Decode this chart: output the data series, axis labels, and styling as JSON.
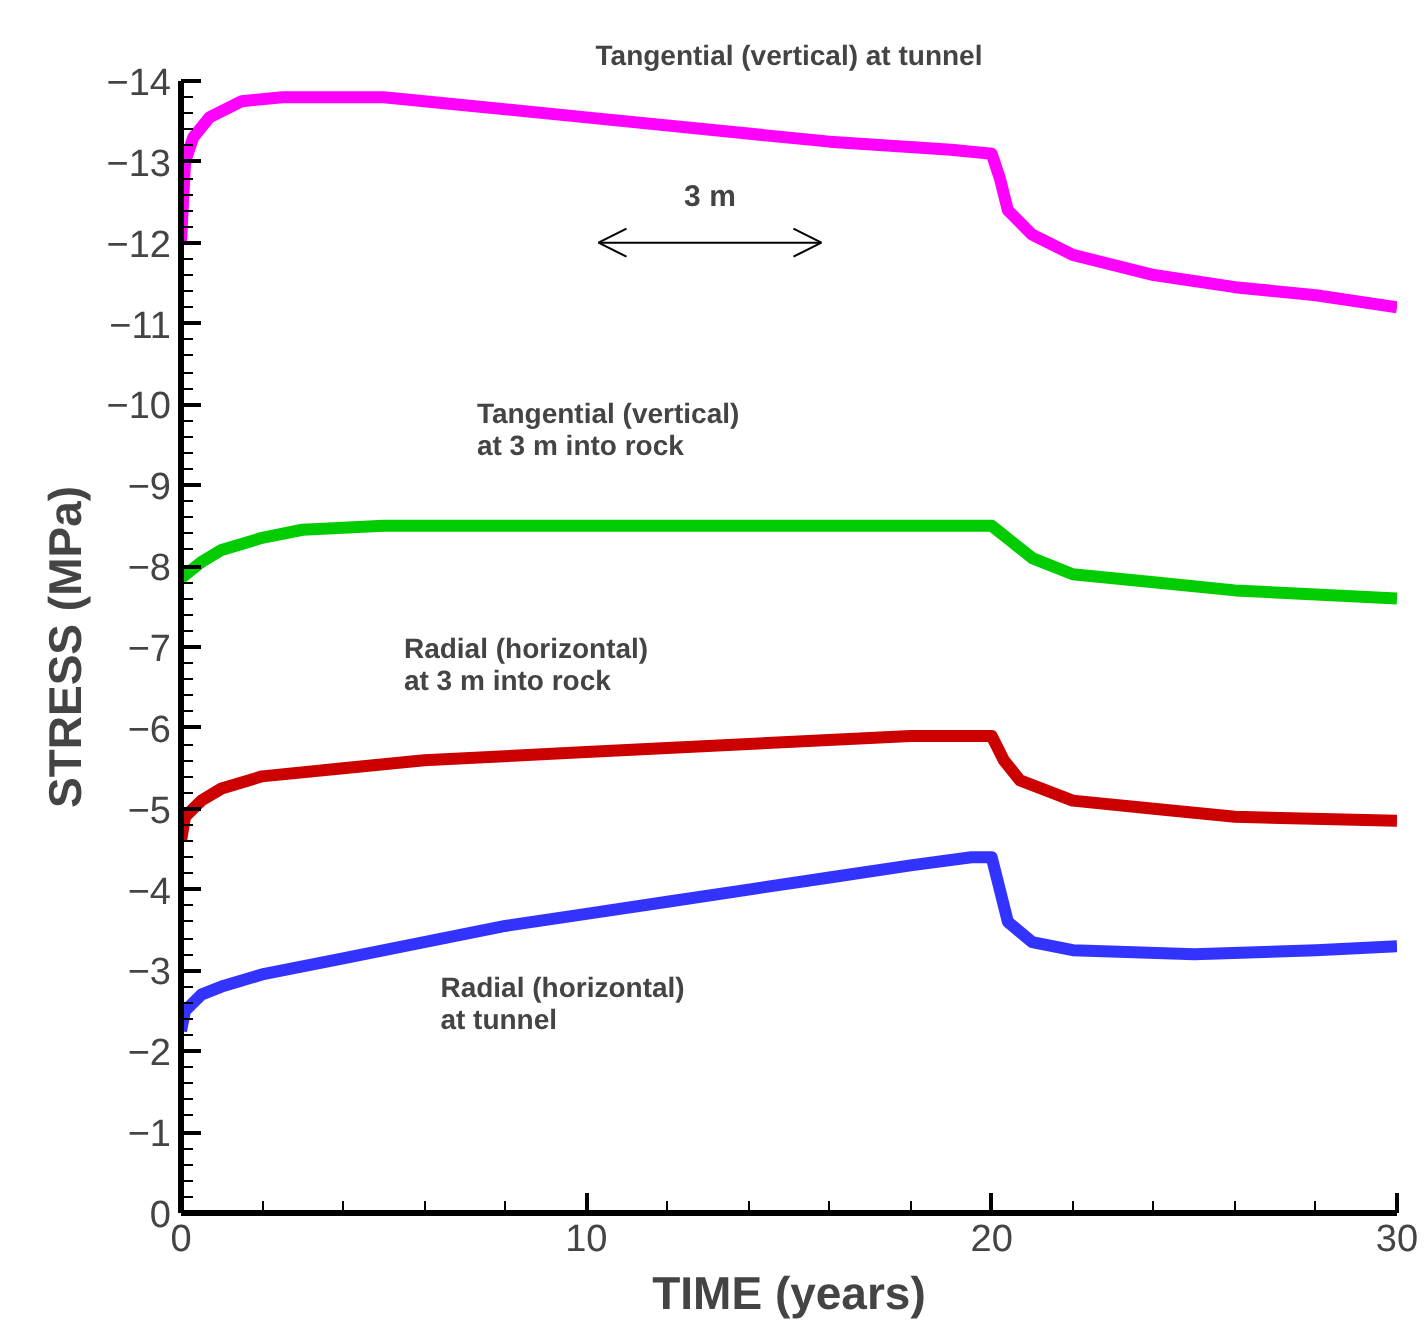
{
  "chart_data": {
    "type": "line",
    "xlabel": "TIME (years)",
    "ylabel": "STRESS (MPa)",
    "xlim": [
      0,
      30
    ],
    "xticks": [
      0,
      10,
      20,
      30
    ],
    "ylim": [
      0,
      -14
    ],
    "yticks": [
      0,
      -1,
      -2,
      -3,
      -4,
      -5,
      -6,
      -7,
      -8,
      -9,
      -10,
      -11,
      -12,
      -13,
      -14
    ],
    "grid": false,
    "annotations": [
      "3 m"
    ],
    "series": [
      {
        "name": "Tangential (vertical) at tunnel",
        "color": "#ff00ff",
        "x": [
          0,
          0.1,
          0.3,
          0.7,
          1.5,
          2.5,
          5,
          7,
          10,
          13,
          16,
          19,
          20,
          20.2,
          20.4,
          21,
          22,
          24,
          26,
          28,
          30
        ],
        "values": [
          -12.0,
          -13.0,
          -13.3,
          -13.55,
          -13.75,
          -13.8,
          -13.8,
          -13.7,
          -13.55,
          -13.4,
          -13.25,
          -13.15,
          -13.1,
          -12.8,
          -12.4,
          -12.1,
          -11.85,
          -11.6,
          -11.45,
          -11.35,
          -11.2
        ]
      },
      {
        "name": "Tangential (vertical)\nat 3 m into rock",
        "color": "#00cc00",
        "x": [
          0,
          0.5,
          1,
          2,
          3,
          5,
          10,
          15,
          20,
          20.5,
          21,
          22,
          24,
          26,
          28,
          30
        ],
        "values": [
          -7.85,
          -8.05,
          -8.2,
          -8.35,
          -8.45,
          -8.5,
          -8.5,
          -8.5,
          -8.5,
          -8.3,
          -8.1,
          -7.9,
          -7.8,
          -7.7,
          -7.65,
          -7.6
        ]
      },
      {
        "name": "Radial (horizontal)\nat 3 m into rock",
        "color": "#cc0000",
        "x": [
          0,
          0.1,
          0.5,
          1,
          2,
          4,
          6,
          10,
          14,
          18,
          20,
          20.3,
          20.7,
          22,
          24,
          26,
          30
        ],
        "values": [
          -4.6,
          -4.9,
          -5.1,
          -5.25,
          -5.4,
          -5.5,
          -5.6,
          -5.7,
          -5.8,
          -5.9,
          -5.9,
          -5.6,
          -5.35,
          -5.1,
          -5.0,
          -4.9,
          -4.85
        ]
      },
      {
        "name": "Radial (horizontal)\nat tunnel",
        "color": "#3333ff",
        "x": [
          0,
          0.1,
          0.5,
          1,
          2,
          4,
          6,
          8,
          10,
          12,
          14,
          16,
          18,
          19.5,
          20,
          20.2,
          20.4,
          21,
          22,
          25,
          28,
          30
        ],
        "values": [
          -2.25,
          -2.5,
          -2.7,
          -2.8,
          -2.95,
          -3.15,
          -3.35,
          -3.55,
          -3.7,
          -3.85,
          -4.0,
          -4.15,
          -4.3,
          -4.4,
          -4.4,
          -4.0,
          -3.6,
          -3.35,
          -3.25,
          -3.2,
          -3.25,
          -3.3
        ]
      }
    ]
  }
}
